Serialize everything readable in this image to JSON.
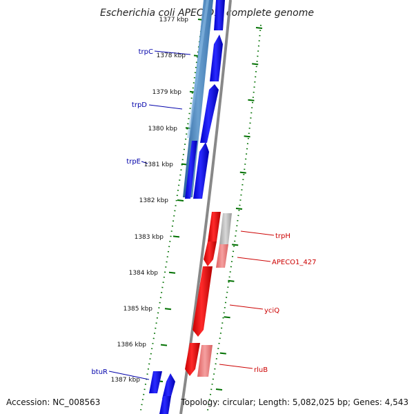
{
  "title": "Escherichia coli APEC O1, complete genome",
  "footer": {
    "accession": "Accession: NC_008563",
    "summary": "Topology: circular; Length: 5,082,025 bp; Genes: 4,543"
  },
  "colors": {
    "forward": "#0000ee",
    "forward_shade": "#4a7fb8",
    "reverse": "#ee0000",
    "reverse_pale": "#f08080",
    "grey": "#b0b0b0",
    "backbone": "#808080",
    "tick": "#007000",
    "label_blue": "#0000aa",
    "label_red": "#cc0000"
  },
  "ticks": [
    {
      "label": "1377 kbp"
    },
    {
      "label": "1378 kbp"
    },
    {
      "label": "1379 kbp"
    },
    {
      "label": "1380 kbp"
    },
    {
      "label": "1381 kbp"
    },
    {
      "label": "1382 kbp"
    },
    {
      "label": "1383 kbp"
    },
    {
      "label": "1384 kbp"
    },
    {
      "label": "1385 kbp"
    },
    {
      "label": "1386 kbp"
    },
    {
      "label": "1387 kbp"
    }
  ],
  "genes": [
    {
      "name": "trpC",
      "strand": "forward"
    },
    {
      "name": "trpD",
      "strand": "forward"
    },
    {
      "name": "trpE",
      "strand": "forward"
    },
    {
      "name": "trpH",
      "strand": "reverse"
    },
    {
      "name": "APECO1_427",
      "strand": "reverse"
    },
    {
      "name": "yciQ",
      "strand": "reverse"
    },
    {
      "name": "rluB",
      "strand": "reverse"
    },
    {
      "name": "btuR",
      "strand": "forward"
    }
  ]
}
